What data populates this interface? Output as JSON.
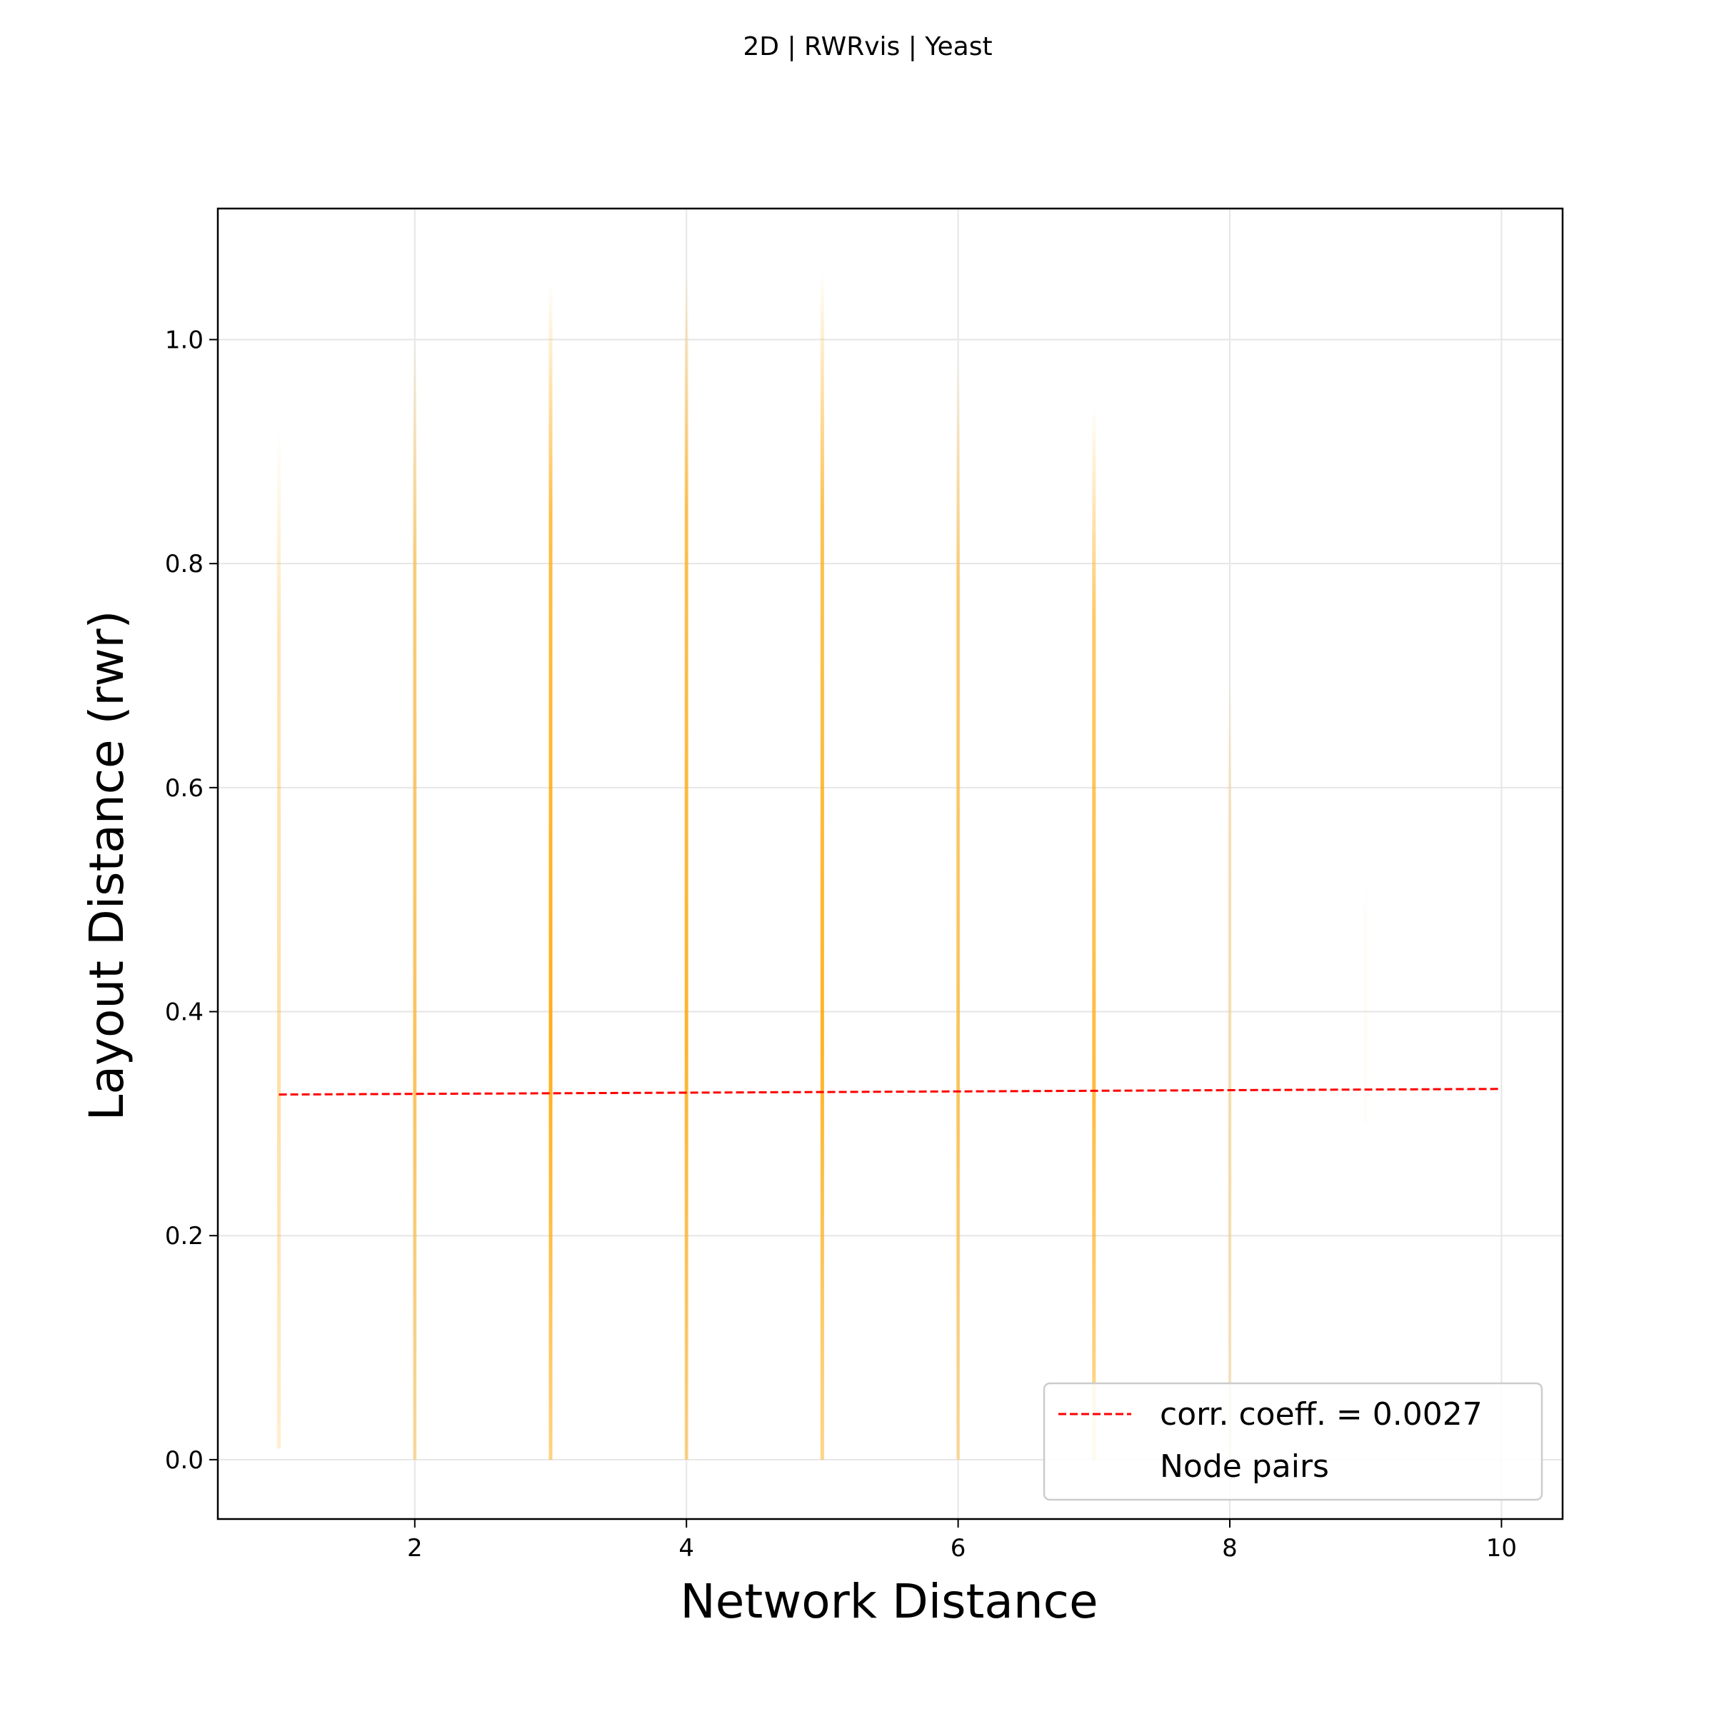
{
  "chart_data": {
    "type": "scatter",
    "title": "2D | RWRvis | Yeast",
    "xlabel": "Network Distance",
    "ylabel": "Layout Distance (rwr)",
    "xlim": [
      0.55,
      10.45
    ],
    "ylim": [
      -0.053,
      1.117
    ],
    "xticks": [
      2,
      4,
      6,
      8,
      10
    ],
    "yticks": [
      0.0,
      0.2,
      0.4,
      0.6,
      0.8,
      1.0
    ],
    "ytick_labels": [
      "0.0",
      "0.2",
      "0.4",
      "0.6",
      "0.8",
      "1.0"
    ],
    "grid": true,
    "legend_position": "lower-right",
    "series": [
      {
        "name": "corr. coeff. = 0.0027",
        "kind": "line",
        "style": "dashed",
        "color": "#ff0000",
        "x": [
          1,
          10
        ],
        "y": [
          0.326,
          0.331
        ]
      },
      {
        "name": "Node pairs",
        "kind": "scatter",
        "color": "#ffa500",
        "columns": [
          {
            "x": 1,
            "ymin": 0.01,
            "ymax": 0.92,
            "density": 0.35
          },
          {
            "x": 2,
            "ymin": 0.0,
            "ymax": 1.0,
            "density": 0.6
          },
          {
            "x": 3,
            "ymin": 0.0,
            "ymax": 1.05,
            "density": 0.9
          },
          {
            "x": 4,
            "ymin": 0.0,
            "ymax": 1.06,
            "density": 0.8
          },
          {
            "x": 5,
            "ymin": 0.0,
            "ymax": 1.06,
            "density": 0.85
          },
          {
            "x": 6,
            "ymin": 0.0,
            "ymax": 0.98,
            "density": 0.6
          },
          {
            "x": 7,
            "ymin": 0.0,
            "ymax": 0.94,
            "density": 0.75
          },
          {
            "x": 8,
            "ymin": 0.0,
            "ymax": 0.7,
            "density": 0.25
          },
          {
            "x": 9,
            "ymin": 0.3,
            "ymax": 0.52,
            "density": 0.04
          }
        ]
      }
    ]
  }
}
